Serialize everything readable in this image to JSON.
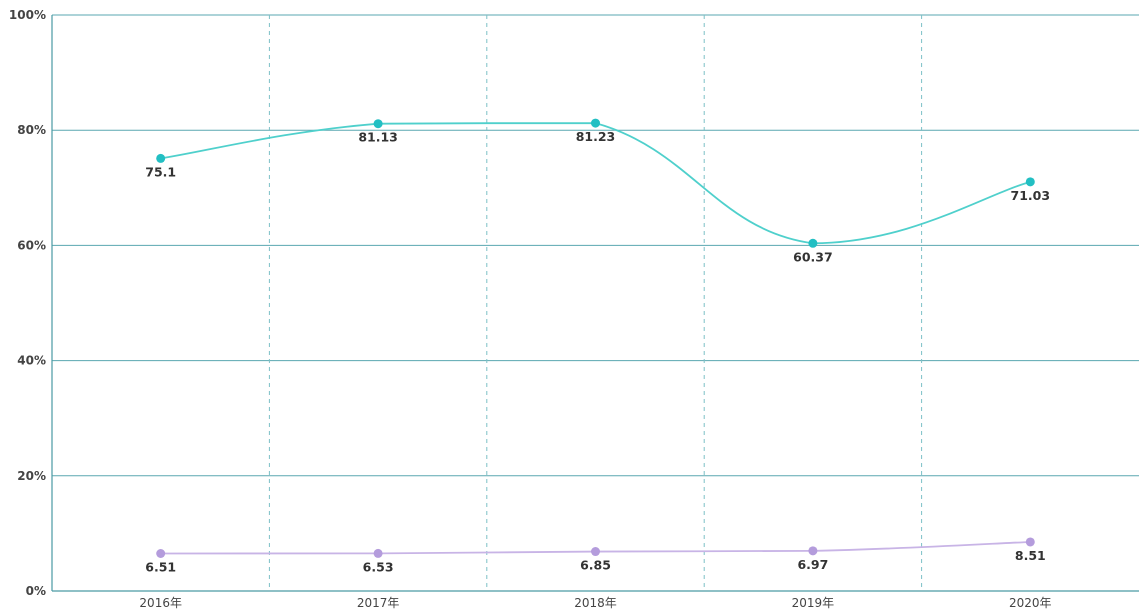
{
  "colors": {
    "series_teal": "#4fd0cc",
    "series_teal_marker": "#22bfc3",
    "series_purple": "#c8b4e6",
    "series_purple_marker": "#b49cdc",
    "grid_h": "#5aa7b0",
    "grid_v": "#7cc0c6",
    "axis": "#4a9aa4"
  },
  "chart_data": {
    "type": "line",
    "categories": [
      "2016年",
      "2017年",
      "2018年",
      "2019年",
      "2020年"
    ],
    "series": [
      {
        "values": [
          75.1,
          81.13,
          81.23,
          60.37,
          71.03
        ],
        "labels": [
          "75.1",
          "81.13",
          "81.23",
          "60.37",
          "71.03"
        ]
      },
      {
        "values": [
          6.51,
          6.53,
          6.85,
          6.97,
          8.51
        ],
        "labels": [
          "6.51",
          "6.53",
          "6.85",
          "6.97",
          "8.51"
        ]
      }
    ],
    "y_ticks": [
      "0%",
      "20%",
      "40%",
      "60%",
      "80%",
      "100%"
    ],
    "ylim": [
      0,
      100
    ],
    "grid": true,
    "legend": false,
    "title": "",
    "xlabel": "",
    "ylabel": ""
  }
}
